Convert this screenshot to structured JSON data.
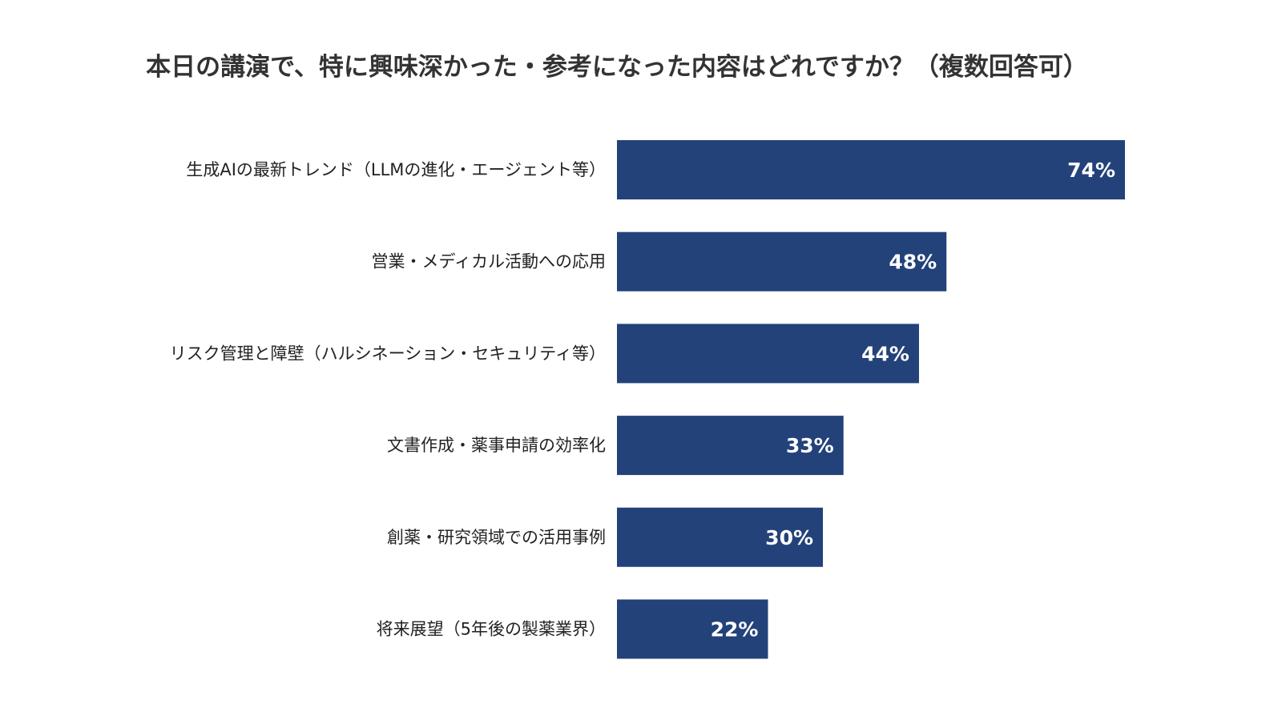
{
  "chart_data": {
    "type": "bar",
    "orientation": "horizontal",
    "title": "本日の講演で、特に興味深かった・参考になった内容はどれですか？（複数回答可）",
    "categories": [
      "生成AIの最新トレンド（LLMの進化・エージェント等）",
      "営業・メディカル活動への応用",
      "リスク管理と障壁（ハルシネーション・セキュリティ等）",
      "文書作成・薬事申請の効率化",
      "創薬・研究領域での活用事例",
      "将来展望（5年後の製薬業界）"
    ],
    "values": [
      74,
      48,
      44,
      33,
      30,
      22
    ],
    "value_labels": [
      "74%",
      "48%",
      "44%",
      "33%",
      "30%",
      "22%"
    ],
    "unit": "%",
    "xlim": [
      0,
      100
    ],
    "grid": false,
    "legend": "none",
    "bar_color": "#23427a"
  }
}
